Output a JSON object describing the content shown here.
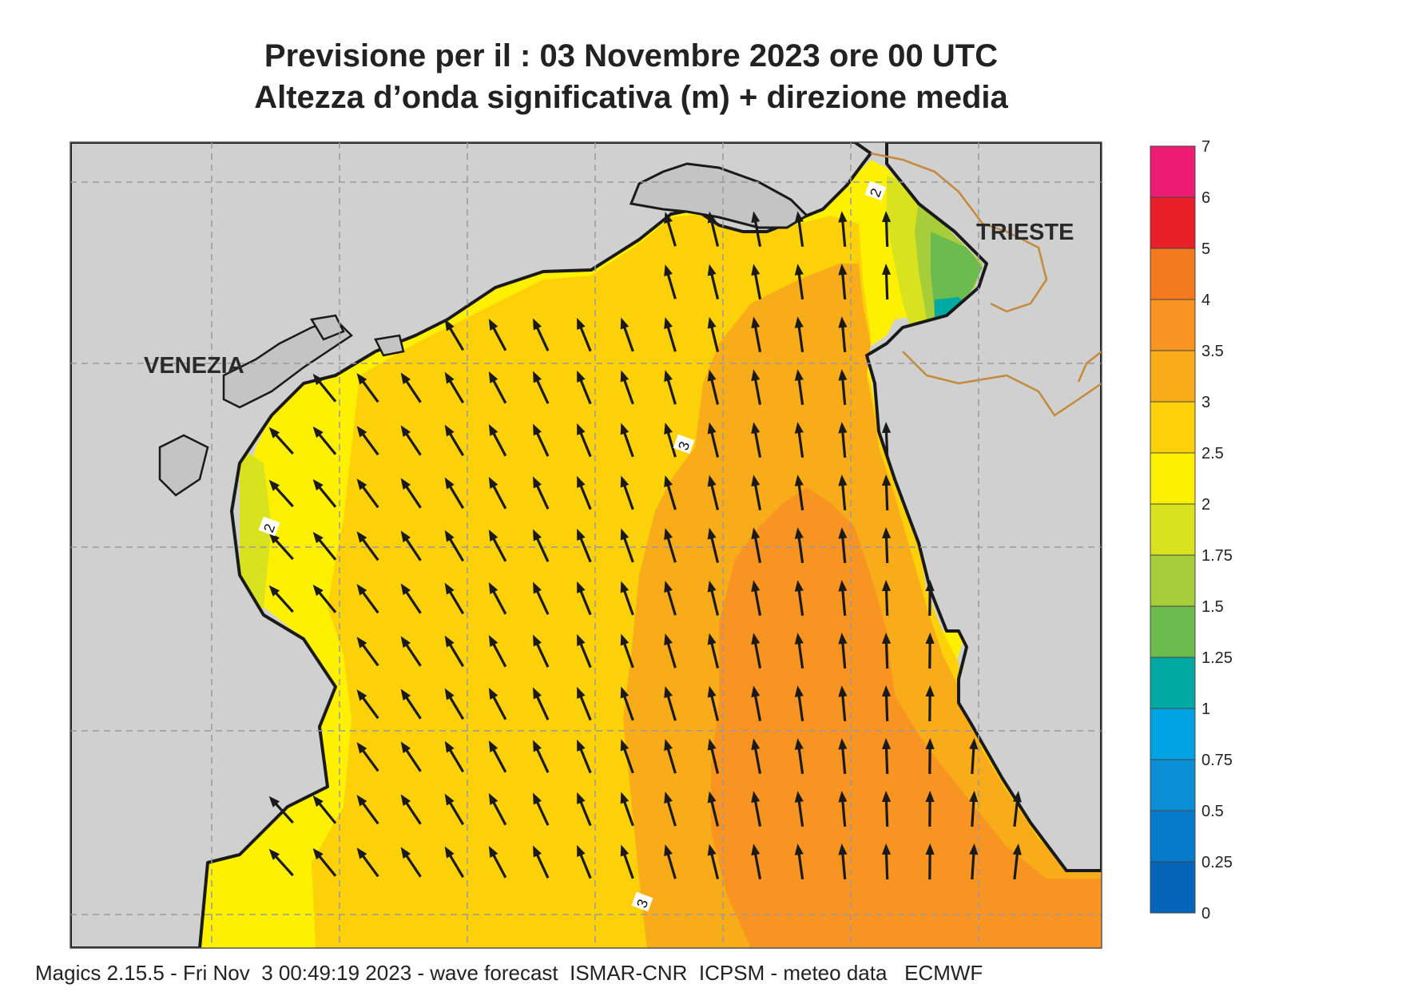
{
  "title": {
    "line1": "Previsione per il  :  03 Novembre  2023   ore 00 UTC",
    "line2": "Altezza d’onda significativa (m) + direzione media"
  },
  "cities": {
    "venezia": "VENEZIA",
    "trieste": "TRIESTE"
  },
  "contour_labels": [
    "2",
    "2",
    "3",
    "3"
  ],
  "legend": {
    "labels": [
      "7",
      "6",
      "5",
      "4",
      "3.5",
      "3",
      "2.5",
      "2",
      "1.75",
      "1.5",
      "1.25",
      "1",
      "0.75",
      "0.5",
      "0.25",
      "0"
    ],
    "colors_top_to_bottom": [
      "#ec1c74",
      "#e8202a",
      "#f47a20",
      "#f79422",
      "#f9ac1a",
      "#fdd10a",
      "#fef001",
      "#d8e21f",
      "#a8cd3a",
      "#6cbb4e",
      "#00aaa2",
      "#00a2e4",
      "#0b8ed4",
      "#087acb",
      "#0465b8"
    ]
  },
  "colors": {
    "land": "#d0d0d0",
    "coast": "#1a1a1a",
    "border": "#c48a3a",
    "arrow": "#1a1a1a"
  },
  "footer": "Magics 2.15.5 - Fri Nov  3 00:49:19 2023 - wave forecast  ISMAR-CNR  ICPSM - meteo data   ECMWF"
}
